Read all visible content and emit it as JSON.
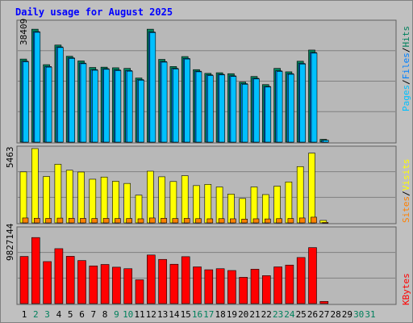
{
  "title": "Daily usage for August 2025",
  "colors": {
    "background": "#c0c0c0",
    "panel": "#b8b8b8",
    "hits": "#00805c",
    "files": "#0080ff",
    "files_light": "#00c0ff",
    "pages": "#00c0ff",
    "visits": "#ffff00",
    "sites": "#ff8000",
    "kbytes": "#ff0000",
    "title": "#0000ff",
    "weekend_label": "#00805c",
    "weekday_label": "#000000"
  },
  "chart_data": [
    {
      "type": "bar",
      "panel": "hits_files_pages",
      "ylabel_max": "38409",
      "right_label": [
        "Pages",
        "Files",
        "Hits"
      ],
      "ylim": [
        0,
        38409
      ],
      "categories": [
        "1",
        "2",
        "3",
        "4",
        "5",
        "6",
        "7",
        "8",
        "9",
        "10",
        "11",
        "12",
        "13",
        "14",
        "15",
        "16",
        "17",
        "18",
        "19",
        "20",
        "21",
        "22",
        "23",
        "24",
        "25",
        "26",
        "27",
        "28",
        "29",
        "30",
        "31"
      ],
      "series": [
        {
          "name": "Hits",
          "values": [
            26700,
            36300,
            24900,
            31200,
            27600,
            26100,
            24000,
            24100,
            23900,
            23700,
            20600,
            36300,
            26600,
            24300,
            27500,
            23300,
            22100,
            22300,
            22000,
            19300,
            21100,
            18500,
            23700,
            22600,
            26000,
            29600,
            900,
            0,
            0,
            0,
            0
          ]
        },
        {
          "name": "Files",
          "values": [
            26000,
            35500,
            24300,
            30600,
            27100,
            25400,
            23300,
            23600,
            23200,
            23000,
            20100,
            35400,
            25900,
            23700,
            26900,
            22800,
            21600,
            21800,
            21300,
            18800,
            20500,
            17900,
            22900,
            22000,
            25300,
            28800,
            600,
            0,
            0,
            0,
            0
          ]
        },
        {
          "name": "Pages",
          "values": [
            25800,
            35300,
            24100,
            30400,
            26900,
            25200,
            23100,
            23400,
            23000,
            22800,
            19900,
            35200,
            25700,
            23500,
            26700,
            22600,
            21400,
            21600,
            21100,
            18600,
            20300,
            17700,
            22700,
            21800,
            25100,
            28600,
            600,
            0,
            0,
            0,
            0
          ]
        }
      ]
    },
    {
      "type": "bar",
      "panel": "visits_sites",
      "ylabel_max": "5463",
      "right_label": [
        "Sites",
        "Visits"
      ],
      "ylim": [
        0,
        5463
      ],
      "categories": [
        "1",
        "2",
        "3",
        "4",
        "5",
        "6",
        "7",
        "8",
        "9",
        "10",
        "11",
        "12",
        "13",
        "14",
        "15",
        "16",
        "17",
        "18",
        "19",
        "20",
        "21",
        "22",
        "23",
        "24",
        "25",
        "26",
        "27",
        "28",
        "29",
        "30",
        "31"
      ],
      "series": [
        {
          "name": "Visits",
          "values": [
            3750,
            5463,
            3410,
            4310,
            3870,
            3740,
            3210,
            3370,
            3060,
            2900,
            2040,
            3800,
            3390,
            3040,
            3470,
            2740,
            2830,
            2640,
            2120,
            1790,
            2640,
            2080,
            2700,
            3010,
            4140,
            5130,
            180,
            0,
            0,
            0,
            0
          ]
        },
        {
          "name": "Sites",
          "values": [
            360,
            340,
            330,
            350,
            340,
            330,
            320,
            330,
            320,
            320,
            300,
            360,
            340,
            320,
            330,
            310,
            300,
            310,
            300,
            280,
            300,
            290,
            310,
            320,
            360,
            420,
            40,
            0,
            0,
            0,
            0
          ]
        }
      ]
    },
    {
      "type": "bar",
      "panel": "kbytes",
      "ylabel_max": "9827144",
      "right_label": [
        "KBytes"
      ],
      "ylim": [
        0,
        9827144
      ],
      "categories": [
        "1",
        "2",
        "3",
        "4",
        "5",
        "6",
        "7",
        "8",
        "9",
        "10",
        "11",
        "12",
        "13",
        "14",
        "15",
        "16",
        "17",
        "18",
        "19",
        "20",
        "21",
        "22",
        "23",
        "24",
        "25",
        "26",
        "27",
        "28",
        "29",
        "30",
        "31"
      ],
      "series": [
        {
          "name": "KBytes",
          "values": [
            6240000,
            8740000,
            5560000,
            7270000,
            6260000,
            5700000,
            4990000,
            5180000,
            4820000,
            4620000,
            3150000,
            6430000,
            5850000,
            5210000,
            6210000,
            4860000,
            4480000,
            4620000,
            4380000,
            3480000,
            4550000,
            3700000,
            4860000,
            5100000,
            6100000,
            7410000,
            290000,
            0,
            0,
            0,
            0
          ]
        }
      ]
    }
  ],
  "x_axis": {
    "labels": [
      "1",
      "2",
      "3",
      "4",
      "5",
      "6",
      "7",
      "8",
      "9",
      "10",
      "11",
      "12",
      "13",
      "14",
      "15",
      "16",
      "17",
      "18",
      "19",
      "20",
      "21",
      "22",
      "23",
      "24",
      "25",
      "26",
      "27",
      "28",
      "29",
      "30",
      "31"
    ],
    "weekend_days": [
      "2",
      "3",
      "9",
      "10",
      "16",
      "17",
      "23",
      "24",
      "30",
      "31"
    ]
  }
}
